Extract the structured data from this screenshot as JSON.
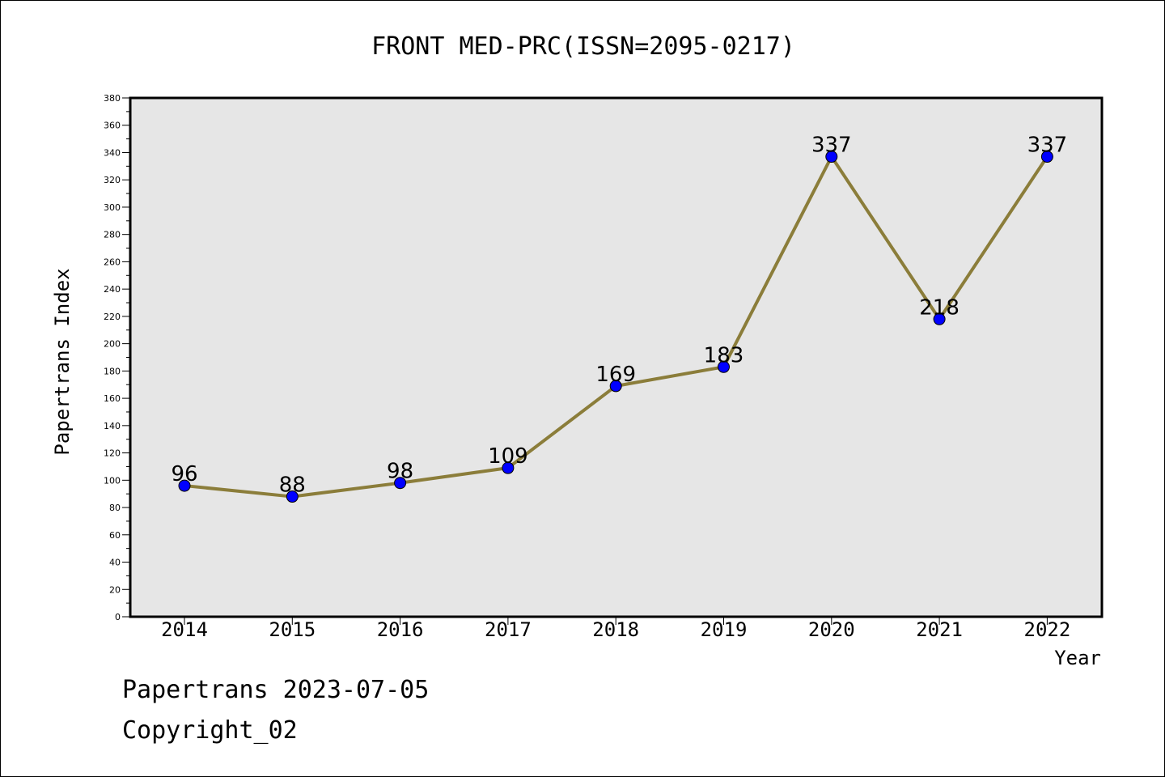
{
  "chart_data": {
    "type": "line",
    "title": "FRONT MED-PRC(ISSN=2095-0217)",
    "xlabel": "Year",
    "ylabel": "Papertrans Index",
    "categories": [
      "2014",
      "2015",
      "2016",
      "2017",
      "2018",
      "2019",
      "2020",
      "2021",
      "2022"
    ],
    "series": [
      {
        "values": [
          96,
          88,
          98,
          109,
          169,
          183,
          337,
          218,
          337
        ]
      }
    ],
    "data_labels": [
      "96",
      "88",
      "98",
      "109",
      "169",
      "183",
      "337",
      "218",
      "337"
    ],
    "ylim": [
      0,
      380
    ],
    "yticks": [
      "0",
      "20",
      "40",
      "60",
      "80",
      "100",
      "120",
      "140",
      "160",
      "180",
      "200",
      "220",
      "240",
      "260",
      "280",
      "300",
      "320",
      "340",
      "360",
      "380"
    ],
    "grid": false,
    "legend": "none",
    "colors": {
      "line": "#8b7d3a",
      "marker": "#0000ff",
      "plot_bg": "#e6e6e6"
    }
  },
  "footer": {
    "date_text": "Papertrans 2023-07-05",
    "copyright_text": "Copyright_02"
  }
}
